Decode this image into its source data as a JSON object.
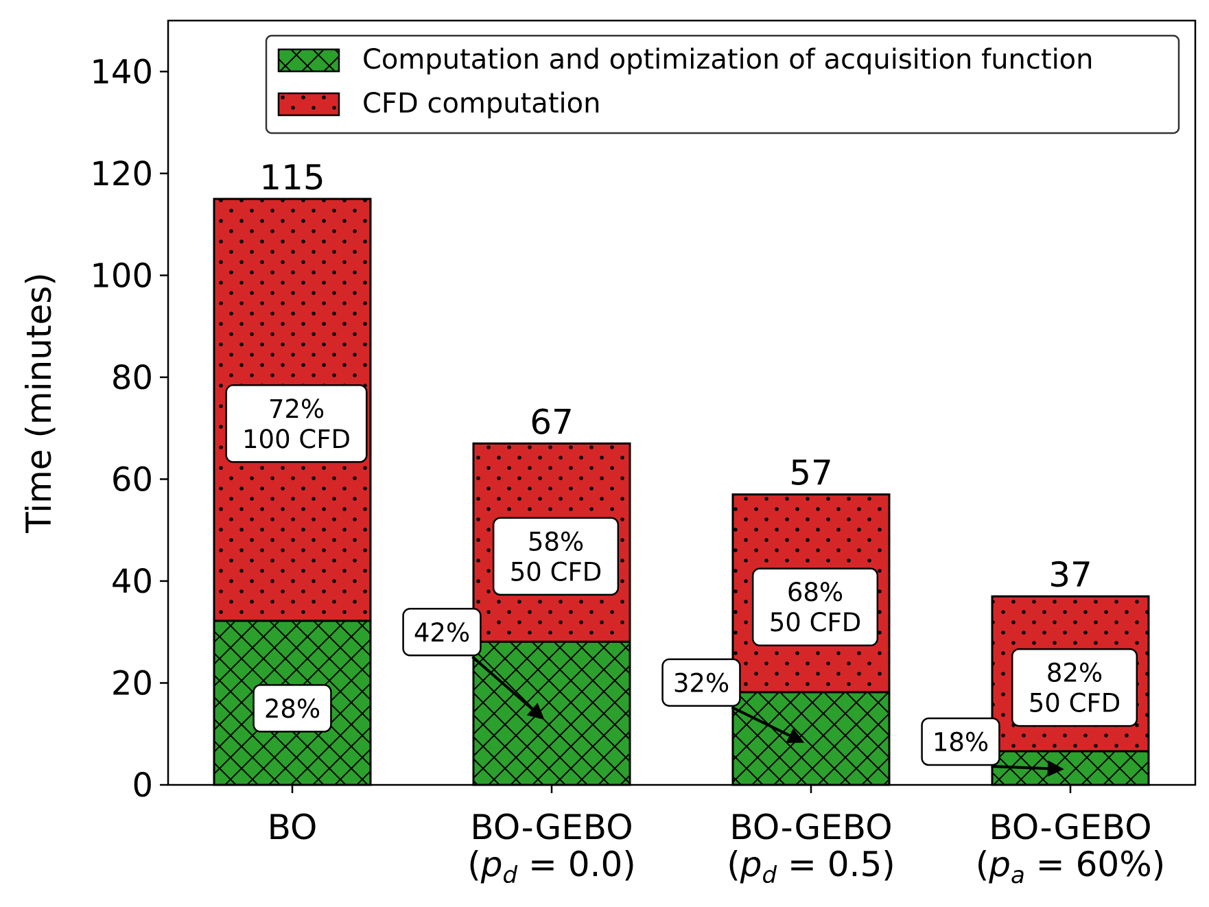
{
  "chart_data": {
    "type": "bar",
    "stacked": true,
    "categories": [
      "BO",
      "BO-GEBO (p_d = 0.0)",
      "BO-GEBO (p_d = 0.5)",
      "BO-GEBO (p_a = 60%)"
    ],
    "category_labels": [
      {
        "line1": "BO",
        "line2": null
      },
      {
        "line1": "BO-GEBO",
        "line2": {
          "var": "p",
          "sub": "d",
          "value": "= 0.0"
        }
      },
      {
        "line1": "BO-GEBO",
        "line2": {
          "var": "p",
          "sub": "d",
          "value": "= 0.5"
        }
      },
      {
        "line1": "BO-GEBO",
        "line2": {
          "var": "p",
          "sub": "a",
          "value": "= 60%"
        }
      }
    ],
    "series": [
      {
        "name": "Computation and optimization of acquisition function",
        "values": [
          32.2,
          28.1,
          18.2,
          6.6
        ],
        "color": "#2ca02c",
        "hatch": "crosshatch"
      },
      {
        "name": "CFD computation",
        "values": [
          82.8,
          38.9,
          38.8,
          30.4
        ],
        "color": "#d62728",
        "hatch": "dots"
      }
    ],
    "totals": [
      "115",
      "67",
      "57",
      "37"
    ],
    "ylabel": "Time (minutes)",
    "xlabel": "",
    "ylim": [
      0,
      150
    ],
    "yticks": [
      0,
      20,
      40,
      60,
      80,
      100,
      120,
      140
    ],
    "legend_position": "upper-right",
    "grid": false,
    "annotations": [
      {
        "bar": 0,
        "text": "28%",
        "style": "inside-acq"
      },
      {
        "bar": 0,
        "text": "72%\n100 CFD",
        "style": "inside-cfd"
      },
      {
        "bar": 1,
        "text": "42%",
        "style": "arrow"
      },
      {
        "bar": 1,
        "text": "58%\n50 CFD",
        "style": "inside-cfd"
      },
      {
        "bar": 2,
        "text": "32%",
        "style": "arrow"
      },
      {
        "bar": 2,
        "text": "68%\n50 CFD",
        "style": "inside-cfd"
      },
      {
        "bar": 3,
        "text": "18%",
        "style": "arrow"
      },
      {
        "bar": 3,
        "text": "82%\n50 CFD",
        "style": "inside-cfd"
      }
    ]
  }
}
